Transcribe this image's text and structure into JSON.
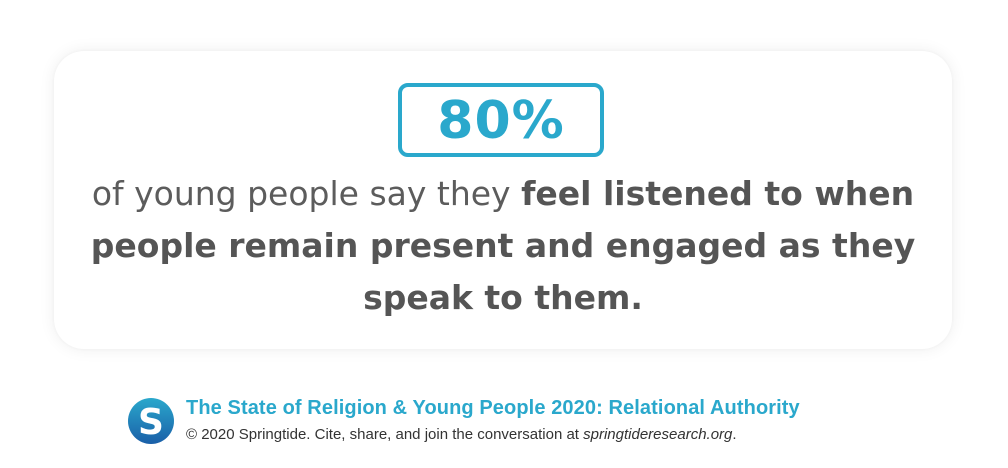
{
  "colors": {
    "accent": "#2aa8cc",
    "text": "#595959",
    "footer_text": "#333333",
    "logo_blue": "#1e6fb5"
  },
  "stat": {
    "value": "80%"
  },
  "statement": {
    "part1": "of young people say they ",
    "part2": "feel listened to when people remain present and engaged as they speak to them."
  },
  "footer": {
    "logo_icon": "springtide-s-logo",
    "title": "The State of Religion & Young People 2020: Relational Authority",
    "copyright": "© 2020 Springtide. Cite, share, and join the conversation at ",
    "site": "springtideresearch.org",
    "period": "."
  }
}
